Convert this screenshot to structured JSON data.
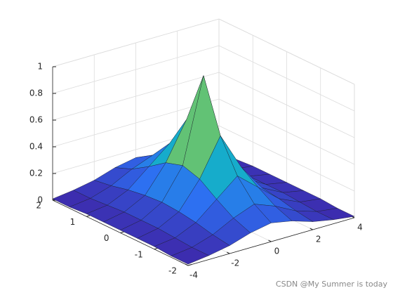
{
  "chart_data": {
    "type": "surface",
    "x": [
      -4,
      -3,
      -2,
      -1,
      0,
      1,
      2,
      3,
      4
    ],
    "y": [
      -2,
      -1.5,
      -1,
      -0.5,
      0,
      0.5,
      1,
      1.5,
      2
    ],
    "z": [
      [
        0.01,
        0.03,
        0.06,
        0.11,
        0.14,
        0.11,
        0.06,
        0.03,
        0.01
      ],
      [
        0.01,
        0.03,
        0.08,
        0.16,
        0.22,
        0.16,
        0.08,
        0.03,
        0.01
      ],
      [
        0.02,
        0.04,
        0.11,
        0.24,
        0.37,
        0.24,
        0.11,
        0.04,
        0.02
      ],
      [
        0.02,
        0.05,
        0.13,
        0.33,
        0.61,
        0.33,
        0.13,
        0.05,
        0.02
      ],
      [
        0.02,
        0.05,
        0.14,
        0.37,
        1,
        0.37,
        0.14,
        0.05,
        0.02
      ],
      [
        0.02,
        0.05,
        0.13,
        0.33,
        0.61,
        0.33,
        0.13,
        0.05,
        0.02
      ],
      [
        0.02,
        0.04,
        0.11,
        0.24,
        0.37,
        0.24,
        0.11,
        0.04,
        0.02
      ],
      [
        0.01,
        0.03,
        0.08,
        0.16,
        0.22,
        0.16,
        0.08,
        0.03,
        0.01
      ],
      [
        0.01,
        0.03,
        0.06,
        0.11,
        0.14,
        0.11,
        0.06,
        0.03,
        0.01
      ]
    ],
    "xlim": [
      -4,
      4
    ],
    "ylim": [
      -2,
      2
    ],
    "zlim": [
      0,
      1
    ],
    "xticks": [
      -4,
      -2,
      0,
      2,
      4
    ],
    "yticks": [
      -2,
      -1,
      0,
      1,
      2
    ],
    "zticks": [
      0,
      0.2,
      0.4,
      0.6,
      0.8,
      1
    ],
    "grid": true,
    "colormap": [
      "#3e26a8",
      "#2d6ff2",
      "#14b0c8",
      "#6cc46a",
      "#e4bb2c",
      "#f9fb0e"
    ]
  },
  "watermark": "CSDN @My Summer is today"
}
